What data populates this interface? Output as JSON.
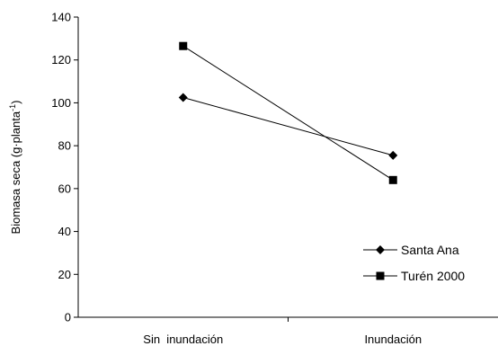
{
  "chart_data": {
    "type": "line",
    "categories": [
      "Sin  inundación",
      "Inundación"
    ],
    "series": [
      {
        "name": "Santa Ana",
        "values": [
          102.5,
          75.5
        ],
        "marker": "diamond",
        "color": "#000000"
      },
      {
        "name": "Turén 2000",
        "values": [
          126.5,
          64
        ],
        "marker": "square",
        "color": "#000000"
      }
    ],
    "ylabel": "Biomasa seca (g·planta",
    "ylabel_superscript": "-1",
    "ylabel_close": ")",
    "ylim": [
      0,
      140
    ],
    "yticks": [
      0,
      20,
      40,
      60,
      80,
      100,
      120,
      140
    ],
    "grid": false,
    "legend_position": "bottom-right"
  }
}
